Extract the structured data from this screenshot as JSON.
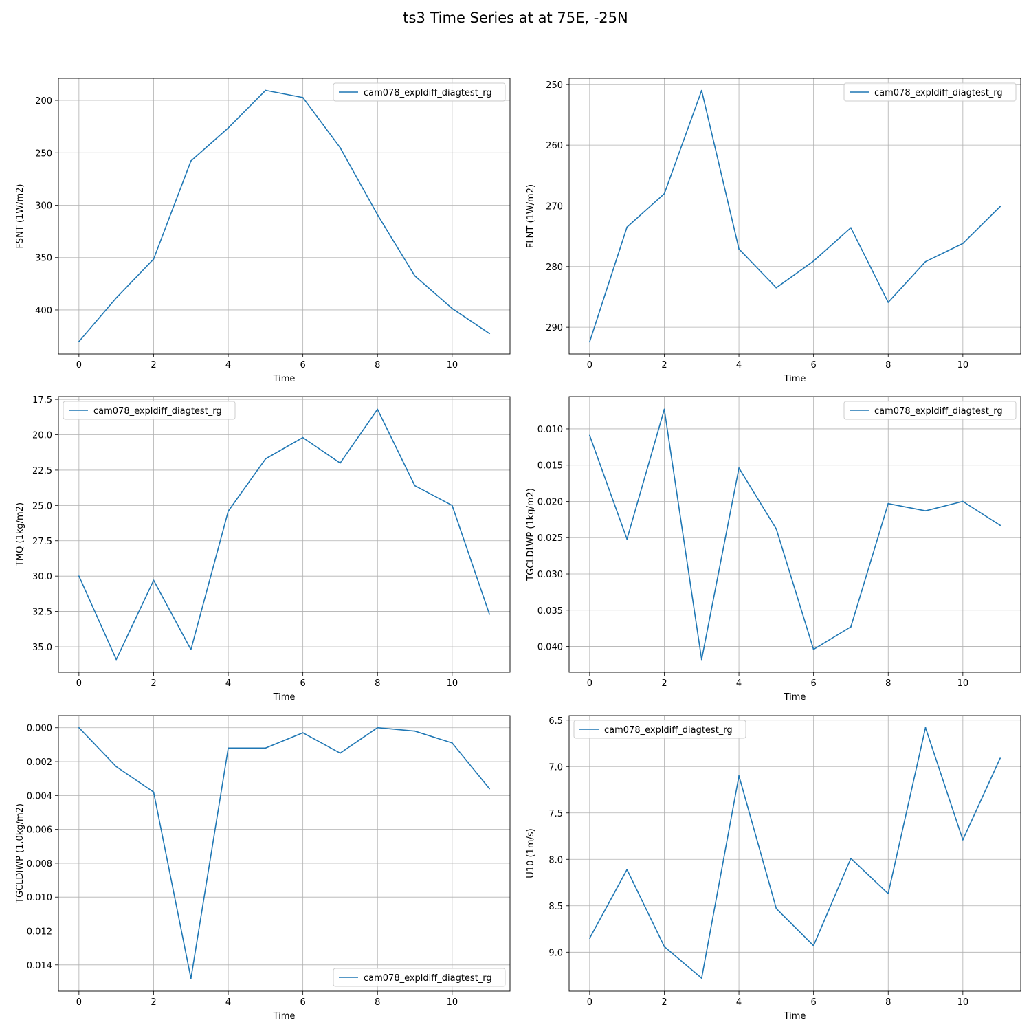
{
  "figure": {
    "title": "ts3 Time Series at at 75E, -25N"
  },
  "chart_data": [
    {
      "type": "line",
      "xlabel": "Time",
      "ylabel": "FSNT (1W/m2)",
      "x": [
        0,
        1,
        2,
        3,
        4,
        5,
        6,
        7,
        8,
        9,
        10,
        11
      ],
      "series": [
        {
          "name": "cam078_expldiff_diagtest_rg",
          "color": "#1f77b4",
          "values": [
            430.1,
            388.5,
            351.4,
            257.8,
            226.3,
            190.5,
            197.3,
            245.1,
            309.1,
            367.5,
            398.6,
            422.5
          ]
        }
      ],
      "xlim": [
        -0.55,
        11.55
      ],
      "ylim": [
        179,
        442
      ],
      "y_inverted": true,
      "xticks": [
        0,
        2,
        4,
        6,
        8,
        10
      ],
      "xtick_labels": [
        "0",
        "2",
        "4",
        "6",
        "8",
        "10"
      ],
      "yticks": [
        200,
        250,
        300,
        350,
        400
      ],
      "ytick_labels": [
        "200",
        "250",
        "300",
        "350",
        "400"
      ],
      "grid": true,
      "legend_loc": "upper right"
    },
    {
      "type": "line",
      "xlabel": "Time",
      "ylabel": "FLNT (1W/m2)",
      "x": [
        0,
        1,
        2,
        3,
        4,
        5,
        6,
        7,
        8,
        9,
        10,
        11
      ],
      "series": [
        {
          "name": "cam078_expldiff_diagtest_rg",
          "color": "#1f77b4",
          "values": [
            292.4,
            273.5,
            268.0,
            251.0,
            277.1,
            283.5,
            279.1,
            273.6,
            285.9,
            279.2,
            276.2,
            270.1
          ]
        }
      ],
      "xlim": [
        -0.55,
        11.55
      ],
      "ylim": [
        249.0,
        294.4
      ],
      "y_inverted": true,
      "xticks": [
        0,
        2,
        4,
        6,
        8,
        10
      ],
      "xtick_labels": [
        "0",
        "2",
        "4",
        "6",
        "8",
        "10"
      ],
      "yticks": [
        250,
        260,
        270,
        280,
        290
      ],
      "ytick_labels": [
        "250",
        "260",
        "270",
        "280",
        "290"
      ],
      "grid": true,
      "legend_loc": "upper right"
    },
    {
      "type": "line",
      "xlabel": "Time",
      "ylabel": "TMQ (1kg/m2)",
      "x": [
        0,
        1,
        2,
        3,
        4,
        5,
        6,
        7,
        8,
        9,
        10,
        11
      ],
      "series": [
        {
          "name": "cam078_expldiff_diagtest_rg",
          "color": "#1f77b4",
          "values": [
            30.0,
            35.9,
            30.3,
            35.2,
            25.4,
            21.7,
            20.2,
            22.0,
            18.2,
            23.6,
            25.0,
            32.7
          ]
        }
      ],
      "xlim": [
        -0.55,
        11.55
      ],
      "ylim": [
        17.3,
        36.8
      ],
      "y_inverted": true,
      "xticks": [
        0,
        2,
        4,
        6,
        8,
        10
      ],
      "xtick_labels": [
        "0",
        "2",
        "4",
        "6",
        "8",
        "10"
      ],
      "yticks": [
        17.5,
        20.0,
        22.5,
        25.0,
        27.5,
        30.0,
        32.5,
        35.0
      ],
      "ytick_labels": [
        "17.5",
        "20.0",
        "22.5",
        "25.0",
        "27.5",
        "30.0",
        "32.5",
        "35.0"
      ],
      "grid": true,
      "legend_loc": "upper left"
    },
    {
      "type": "line",
      "xlabel": "Time",
      "ylabel": "TGCLDLWP (1kg/m2)",
      "x": [
        0,
        1,
        2,
        3,
        4,
        5,
        6,
        7,
        8,
        9,
        10,
        11
      ],
      "series": [
        {
          "name": "cam078_expldiff_diagtest_rg",
          "color": "#1f77b4",
          "values": [
            0.0109,
            0.0252,
            0.0073,
            0.0418,
            0.0154,
            0.0238,
            0.0404,
            0.0373,
            0.0203,
            0.0213,
            0.02,
            0.0233
          ]
        }
      ],
      "xlim": [
        -0.55,
        11.55
      ],
      "ylim": [
        0.00555,
        0.04355
      ],
      "y_inverted": true,
      "xticks": [
        0,
        2,
        4,
        6,
        8,
        10
      ],
      "xtick_labels": [
        "0",
        "2",
        "4",
        "6",
        "8",
        "10"
      ],
      "yticks": [
        0.01,
        0.015,
        0.02,
        0.025,
        0.03,
        0.035,
        0.04
      ],
      "ytick_labels": [
        "0.010",
        "0.015",
        "0.020",
        "0.025",
        "0.030",
        "0.035",
        "0.040"
      ],
      "grid": true,
      "legend_loc": "upper right"
    },
    {
      "type": "line",
      "xlabel": "Time",
      "ylabel": "TGCLDIWP (1.0kg/m2)",
      "x": [
        0,
        1,
        2,
        3,
        4,
        5,
        6,
        7,
        8,
        9,
        10,
        11
      ],
      "series": [
        {
          "name": "cam078_expldiff_diagtest_rg",
          "color": "#1f77b4",
          "values": [
            0.0,
            0.0023,
            0.0038,
            0.0148,
            0.0012,
            0.0012,
            0.0003,
            0.0015,
            0.0,
            0.0002,
            0.0009,
            0.0036
          ]
        }
      ],
      "xlim": [
        -0.55,
        11.55
      ],
      "ylim": [
        -0.00072,
        0.01555
      ],
      "y_inverted": true,
      "xticks": [
        0,
        2,
        4,
        6,
        8,
        10
      ],
      "xtick_labels": [
        "0",
        "2",
        "4",
        "6",
        "8",
        "10"
      ],
      "yticks": [
        0.0,
        0.002,
        0.004,
        0.006,
        0.008,
        0.01,
        0.012,
        0.014
      ],
      "ytick_labels": [
        "0.000",
        "0.002",
        "0.004",
        "0.006",
        "0.008",
        "0.010",
        "0.012",
        "0.014"
      ],
      "grid": true,
      "legend_loc": "lower right"
    },
    {
      "type": "line",
      "xlabel": "Time",
      "ylabel": "U10 (1m/s)",
      "x": [
        0,
        1,
        2,
        3,
        4,
        5,
        6,
        7,
        8,
        9,
        10,
        11
      ],
      "series": [
        {
          "name": "cam078_expldiff_diagtest_rg",
          "color": "#1f77b4",
          "values": [
            8.85,
            8.11,
            8.94,
            9.28,
            7.1,
            8.53,
            8.93,
            7.99,
            8.37,
            6.58,
            7.79,
            6.91
          ]
        }
      ],
      "xlim": [
        -0.55,
        11.55
      ],
      "ylim": [
        6.45,
        9.42
      ],
      "y_inverted": true,
      "xticks": [
        0,
        2,
        4,
        6,
        8,
        10
      ],
      "xtick_labels": [
        "0",
        "2",
        "4",
        "6",
        "8",
        "10"
      ],
      "yticks": [
        6.5,
        7.0,
        7.5,
        8.0,
        8.5,
        9.0
      ],
      "ytick_labels": [
        "6.5",
        "7.0",
        "7.5",
        "8.0",
        "8.5",
        "9.0"
      ],
      "grid": true,
      "legend_loc": "upper left"
    }
  ]
}
